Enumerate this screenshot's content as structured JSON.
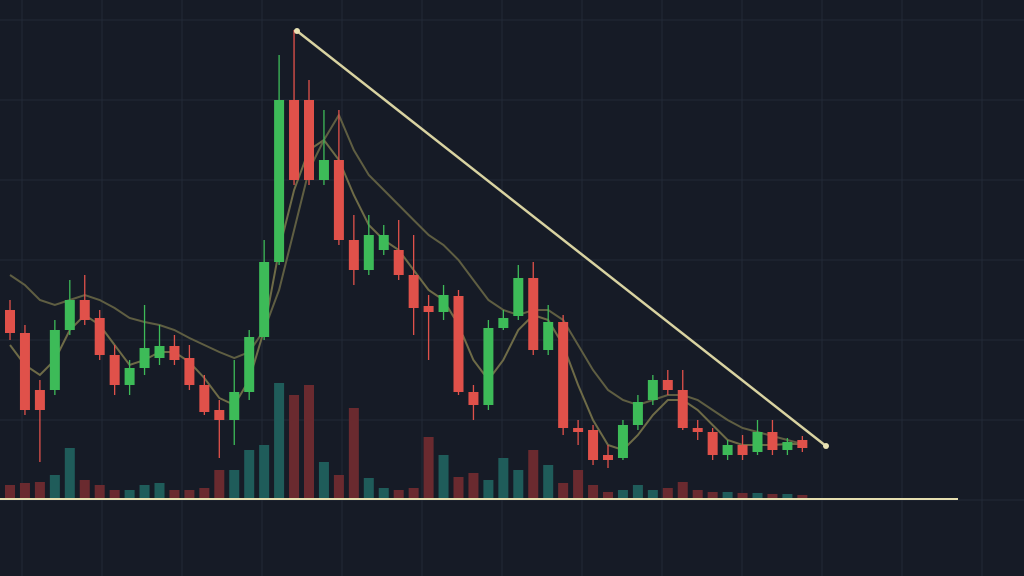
{
  "chart_data": {
    "type": "candlestick",
    "open": [
      266,
      243,
      186,
      186,
      246,
      276,
      258,
      221,
      191,
      208,
      218,
      230,
      218,
      191,
      166,
      156,
      184,
      239,
      314,
      476,
      476,
      396,
      416,
      336,
      306,
      326,
      326,
      301,
      270,
      264,
      280,
      184,
      171,
      248,
      260,
      298,
      226,
      254,
      148,
      146,
      121,
      118,
      151,
      176,
      196,
      186,
      148,
      144,
      121,
      131,
      124,
      144,
      126,
      136
    ],
    "close": [
      243,
      166,
      166,
      246,
      276,
      256,
      221,
      191,
      208,
      228,
      230,
      216,
      191,
      164,
      156,
      184,
      239,
      314,
      476,
      396,
      396,
      416,
      336,
      306,
      341,
      341,
      301,
      268,
      264,
      281,
      184,
      171,
      248,
      258,
      298,
      226,
      254,
      148,
      144,
      116,
      116,
      151,
      174,
      196,
      186,
      148,
      144,
      121,
      131,
      121,
      144,
      126,
      134,
      128
    ],
    "high": [
      276,
      251,
      196,
      256,
      296,
      301,
      266,
      231,
      216,
      271,
      251,
      241,
      231,
      201,
      176,
      216,
      246,
      336,
      521,
      546,
      496,
      466,
      466,
      361,
      361,
      351,
      356,
      341,
      281,
      291,
      286,
      191,
      256,
      266,
      311,
      314,
      271,
      261,
      156,
      151,
      131,
      156,
      181,
      201,
      206,
      206,
      156,
      148,
      136,
      141,
      156,
      156,
      138,
      140
    ],
    "low": [
      236,
      161,
      114,
      181,
      241,
      251,
      216,
      181,
      181,
      201,
      211,
      211,
      186,
      161,
      118,
      131,
      176,
      236,
      311,
      391,
      391,
      391,
      331,
      291,
      301,
      321,
      296,
      241,
      216,
      256,
      181,
      156,
      166,
      246,
      256,
      221,
      221,
      141,
      131,
      111,
      108,
      116,
      146,
      171,
      181,
      146,
      136,
      116,
      116,
      116,
      121,
      121,
      121,
      124
    ],
    "volume": [
      13,
      15,
      16,
      23,
      50,
      18,
      13,
      8,
      8,
      13,
      15,
      8,
      8,
      10,
      28,
      28,
      48,
      53,
      115,
      103,
      113,
      36,
      23,
      90,
      20,
      10,
      8,
      10,
      61,
      43,
      21,
      25,
      18,
      40,
      28,
      48,
      33,
      15,
      28,
      13,
      6,
      8,
      13,
      8,
      10,
      16,
      8,
      6,
      6,
      5,
      5,
      4,
      4,
      3
    ],
    "series": [
      {
        "color": "#6e6b47",
        "values": [
          231,
          211,
          201,
          216,
          246,
          261,
          251,
          231,
          211,
          216,
          224,
          224,
          214,
          198,
          178,
          171,
          196,
          246,
          326,
          386,
          426,
          436,
          416,
          381,
          351,
          336,
          326,
          306,
          286,
          276,
          251,
          216,
          196,
          216,
          246,
          261,
          256,
          231,
          191,
          156,
          131,
          126,
          141,
          161,
          176,
          176,
          166,
          151,
          136,
          131,
          131,
          131,
          132,
          132
        ]
      },
      {
        "color": "#5f5e42",
        "values": [
          301,
          291,
          276,
          271,
          276,
          281,
          276,
          268,
          258,
          254,
          251,
          246,
          238,
          231,
          224,
          218,
          224,
          246,
          286,
          346,
          406,
          436,
          461,
          426,
          401,
          386,
          371,
          356,
          341,
          331,
          316,
          296,
          276,
          266,
          261,
          266,
          266,
          256,
          231,
          206,
          186,
          176,
          171,
          176,
          181,
          181,
          176,
          166,
          156,
          148,
          144,
          140,
          136,
          132
        ]
      }
    ],
    "ylim": [
      0,
      576
    ],
    "volume_ylim": [
      0,
      498
    ],
    "up_color": "#3dbb58",
    "down_color": "#e0514a",
    "volume_up_color": "#1f5c5a",
    "volume_down_color": "#6a2a2f",
    "grid": true
  }
}
